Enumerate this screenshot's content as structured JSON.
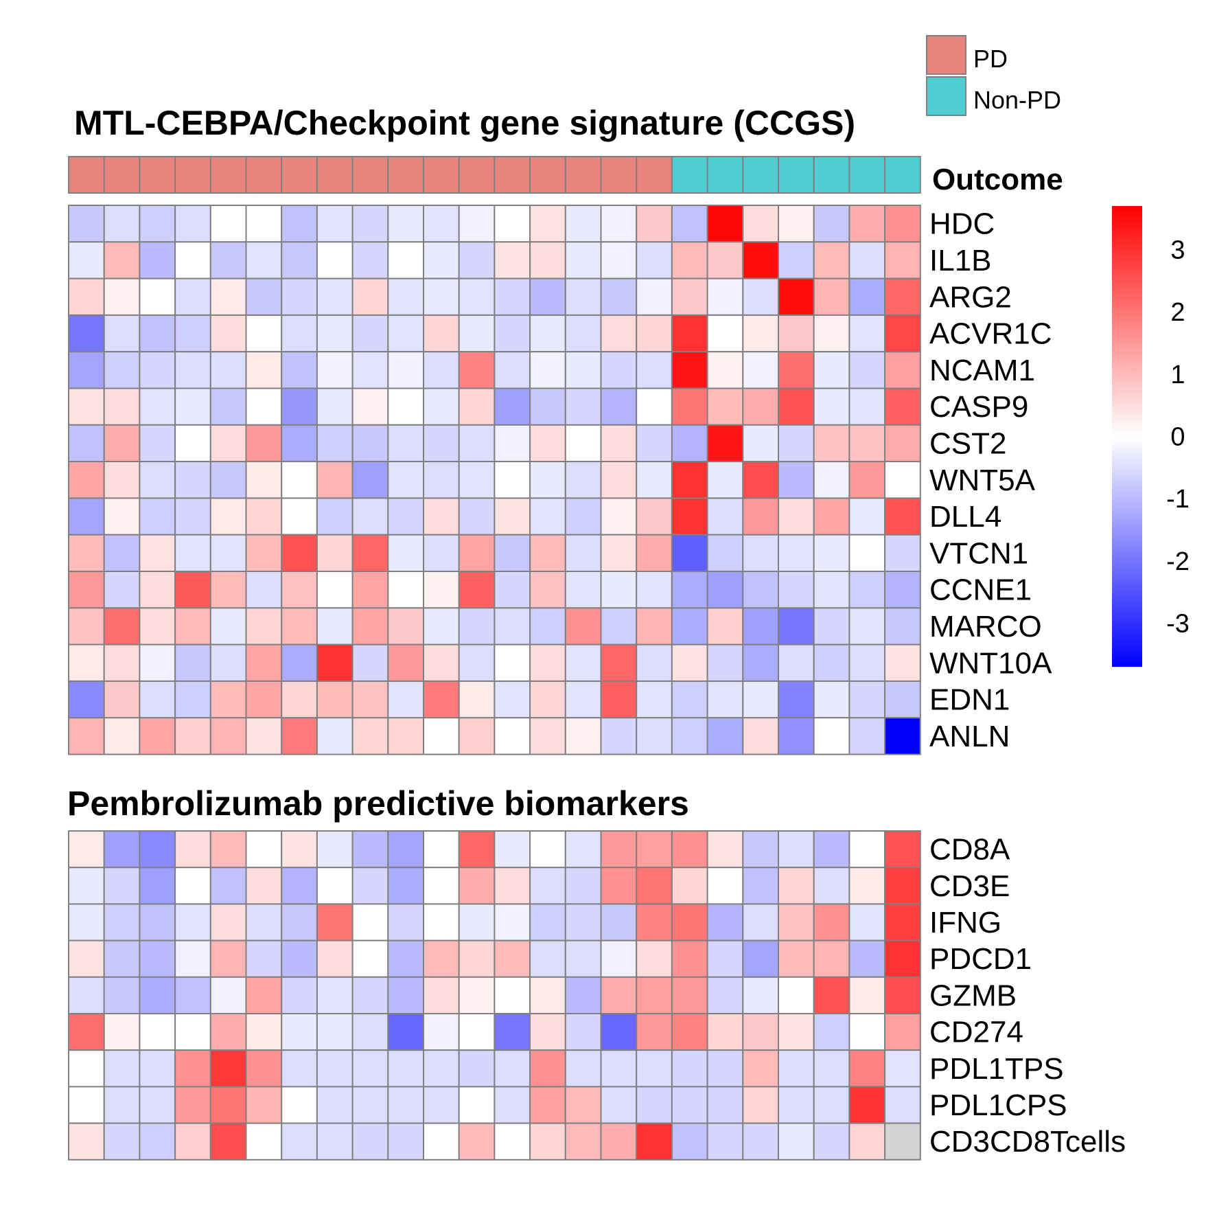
{
  "colors": {
    "pd": "#E8837E",
    "non_pd": "#4ECDD3",
    "high": "#FF0000",
    "mid": "#FFFFFF",
    "low": "#0000FF",
    "na": "#D3D3D3",
    "grid": "#808080"
  },
  "legend": {
    "items": [
      {
        "label": "PD",
        "color": "#E8837E"
      },
      {
        "label": "Non-PD",
        "color": "#4ECDD3"
      }
    ]
  },
  "chart_data": {
    "type": "heatmap",
    "outcome": {
      "label": "Outcome",
      "values": [
        "PD",
        "PD",
        "PD",
        "PD",
        "PD",
        "PD",
        "PD",
        "PD",
        "PD",
        "PD",
        "PD",
        "PD",
        "PD",
        "PD",
        "PD",
        "PD",
        "PD",
        "Non-PD",
        "Non-PD",
        "Non-PD",
        "Non-PD",
        "Non-PD",
        "Non-PD",
        "Non-PD"
      ]
    },
    "colorbar": {
      "range": [
        -3.7,
        3.7
      ],
      "ticks": [
        3,
        2,
        1,
        0,
        -1,
        -2,
        -3
      ]
    },
    "panels": [
      {
        "title": "MTL-CEBPA/Checkpoint gene signature (CCGS)",
        "rows": [
          "HDC",
          "IL1B",
          "ARG2",
          "ACVR1C",
          "NCAM1",
          "CASP9",
          "CST2",
          "WNT5A",
          "DLL4",
          "VTCN1",
          "CCNE1",
          "MARCO",
          "WNT10A",
          "EDN1",
          "ANLN"
        ],
        "values": [
          [
            -0.8,
            -0.5,
            -0.7,
            -0.5,
            0.0,
            0.0,
            -0.9,
            -0.4,
            -0.6,
            -0.3,
            -0.4,
            -0.2,
            0.0,
            0.4,
            -0.3,
            -0.2,
            0.8,
            -0.9,
            3.6,
            0.5,
            0.2,
            -0.8,
            1.2,
            1.6
          ],
          [
            -0.3,
            1.0,
            -1.0,
            0.0,
            -0.8,
            -0.4,
            -0.8,
            0.0,
            -0.6,
            0.0,
            -0.3,
            -0.6,
            0.4,
            0.5,
            -0.3,
            -0.2,
            -0.5,
            1.0,
            0.8,
            3.5,
            -0.7,
            1.0,
            -0.5,
            1.1
          ],
          [
            0.6,
            0.2,
            0.0,
            -0.5,
            0.3,
            -0.8,
            -0.6,
            -0.4,
            0.6,
            -0.4,
            -0.3,
            -0.4,
            -0.6,
            -1.0,
            -0.5,
            -0.8,
            -0.2,
            0.8,
            -0.2,
            -0.5,
            3.5,
            1.1,
            -1.2,
            2.2
          ],
          [
            -2.0,
            -0.5,
            -0.9,
            -0.7,
            0.5,
            0.0,
            -0.5,
            -0.3,
            -0.6,
            -0.4,
            0.6,
            -0.3,
            -0.6,
            -0.3,
            -0.5,
            0.5,
            0.6,
            3.0,
            0.0,
            0.3,
            0.8,
            0.2,
            -0.4,
            2.7
          ],
          [
            -1.3,
            -0.7,
            -0.6,
            -0.5,
            -0.5,
            0.3,
            -0.9,
            -0.2,
            -0.4,
            -0.2,
            -0.5,
            1.8,
            -0.5,
            -0.2,
            -0.3,
            -0.6,
            -0.5,
            3.4,
            0.2,
            -0.2,
            2.1,
            -0.3,
            -0.6,
            1.4
          ],
          [
            0.4,
            0.5,
            -0.4,
            -0.3,
            -0.8,
            0.0,
            -1.5,
            -0.3,
            0.2,
            0.0,
            -0.3,
            0.6,
            -1.4,
            -0.8,
            -0.6,
            -1.1,
            0.0,
            2.0,
            1.0,
            1.2,
            2.5,
            -0.3,
            -0.4,
            2.3
          ],
          [
            -0.9,
            1.2,
            -0.6,
            0.0,
            0.5,
            1.5,
            -1.2,
            -0.7,
            -0.8,
            -0.5,
            -0.6,
            -0.5,
            -0.2,
            0.5,
            0.0,
            0.5,
            -0.6,
            -1.1,
            3.4,
            -0.3,
            -0.6,
            0.9,
            0.9,
            1.2
          ],
          [
            1.3,
            0.5,
            -0.5,
            -0.6,
            -0.8,
            0.3,
            0.0,
            1.1,
            -1.4,
            -0.4,
            -0.5,
            -0.4,
            0.0,
            -0.3,
            -0.5,
            0.5,
            -0.3,
            3.0,
            -0.3,
            2.6,
            -1.0,
            -0.2,
            1.5,
            0.0
          ],
          [
            -1.3,
            0.2,
            -0.7,
            -0.6,
            0.3,
            0.6,
            0.0,
            -0.7,
            -0.5,
            -0.6,
            0.5,
            -0.6,
            0.4,
            -0.4,
            -0.7,
            0.2,
            0.8,
            3.0,
            -0.5,
            1.5,
            0.5,
            1.3,
            -0.3,
            2.5
          ],
          [
            1.0,
            -0.9,
            0.4,
            -0.4,
            -0.4,
            1.0,
            2.5,
            0.6,
            2.2,
            -0.3,
            -0.5,
            1.3,
            -0.8,
            1.0,
            -0.5,
            0.4,
            1.2,
            -2.3,
            -0.7,
            -0.5,
            -0.4,
            -0.3,
            0.0,
            -0.6
          ],
          [
            1.5,
            -0.6,
            0.5,
            2.4,
            1.0,
            -0.5,
            0.9,
            0.0,
            1.3,
            0.0,
            0.2,
            2.3,
            -0.6,
            0.9,
            -0.4,
            -0.3,
            -0.4,
            -1.2,
            -1.4,
            -0.9,
            -0.6,
            -0.4,
            -0.7,
            -1.1
          ],
          [
            0.9,
            2.1,
            0.5,
            1.0,
            -0.3,
            0.6,
            1.0,
            -0.3,
            1.3,
            0.8,
            -0.3,
            -0.6,
            -0.5,
            -0.7,
            1.6,
            -0.7,
            1.1,
            -1.2,
            0.7,
            -1.4,
            -2.0,
            -0.6,
            -0.4,
            -0.8
          ],
          [
            0.3,
            0.5,
            -0.2,
            -0.8,
            -0.5,
            1.3,
            -1.2,
            3.0,
            -0.6,
            1.5,
            0.5,
            -0.5,
            0.0,
            0.5,
            -0.4,
            2.2,
            -0.5,
            0.4,
            -0.6,
            -1.2,
            -0.5,
            -0.7,
            -0.5,
            0.4
          ],
          [
            -1.7,
            0.8,
            -0.5,
            -0.7,
            1.0,
            1.3,
            0.6,
            1.0,
            0.9,
            -0.4,
            1.9,
            0.3,
            -0.4,
            0.6,
            -0.4,
            2.3,
            -0.4,
            -0.7,
            -0.4,
            -0.3,
            -1.8,
            -0.3,
            -0.6,
            -0.8
          ],
          [
            1.1,
            0.3,
            1.3,
            0.7,
            1.1,
            0.4,
            1.9,
            -0.3,
            0.6,
            0.6,
            0.0,
            0.7,
            0.0,
            0.5,
            0.2,
            -0.6,
            -0.5,
            -0.7,
            -1.2,
            0.5,
            -1.6,
            0.0,
            -0.6,
            -3.7
          ]
        ]
      },
      {
        "title": "Pembrolizumab predictive biomarkers",
        "rows": [
          "CD8A",
          "CD3E",
          "IFNG",
          "PDCD1",
          "GZMB",
          "CD274",
          "PDL1TPS",
          "PDL1CPS",
          "CD3CD8Tcells"
        ],
        "values": [
          [
            0.3,
            -1.4,
            -1.7,
            0.5,
            1.0,
            0.0,
            0.4,
            -0.3,
            -1.0,
            -1.3,
            0.0,
            2.2,
            -0.3,
            0.0,
            -0.4,
            1.5,
            1.4,
            1.6,
            0.4,
            -0.8,
            -0.5,
            -1.0,
            0.0,
            2.5
          ],
          [
            -0.3,
            -0.6,
            -1.4,
            0.0,
            -0.9,
            0.5,
            -1.1,
            0.0,
            -0.6,
            -1.2,
            0.0,
            1.2,
            0.5,
            -0.5,
            -0.6,
            1.6,
            2.0,
            0.6,
            0.0,
            -0.9,
            0.6,
            -0.5,
            0.3,
            2.8
          ],
          [
            -0.3,
            -0.7,
            -0.9,
            -0.4,
            0.5,
            -0.5,
            -0.8,
            2.0,
            0.0,
            -0.6,
            0.0,
            -0.3,
            -0.2,
            -0.7,
            -0.6,
            -0.8,
            1.8,
            2.0,
            -1.1,
            -0.5,
            0.9,
            1.6,
            -0.4,
            2.8
          ],
          [
            0.4,
            -0.8,
            -1.0,
            -0.2,
            1.1,
            -0.6,
            -1.0,
            0.5,
            0.0,
            -1.0,
            1.0,
            0.6,
            1.0,
            -0.5,
            -0.5,
            -0.2,
            0.5,
            1.6,
            -0.6,
            -1.3,
            1.0,
            1.1,
            -1.0,
            3.0
          ],
          [
            -0.5,
            -0.8,
            -1.2,
            -0.9,
            -0.2,
            1.3,
            -0.6,
            -0.4,
            -0.6,
            -1.0,
            0.5,
            0.2,
            0.0,
            0.3,
            -1.0,
            1.2,
            1.4,
            1.5,
            -0.6,
            -0.3,
            0.0,
            2.5,
            0.3,
            2.6
          ],
          [
            2.1,
            0.2,
            0.0,
            0.0,
            1.2,
            0.3,
            -0.3,
            -0.3,
            -0.5,
            -2.2,
            -0.2,
            0.0,
            -2.0,
            0.5,
            -0.6,
            -2.2,
            1.5,
            1.8,
            0.6,
            0.8,
            0.4,
            -0.7,
            0.0,
            1.4
          ],
          [
            0.0,
            -0.5,
            -0.5,
            1.6,
            2.9,
            1.6,
            -0.5,
            -0.5,
            -0.5,
            -0.5,
            -0.5,
            -0.6,
            -0.5,
            1.6,
            -0.5,
            -0.5,
            -0.5,
            -0.6,
            -0.6,
            1.0,
            -0.5,
            -0.5,
            1.8,
            -0.4
          ],
          [
            0.0,
            -0.5,
            -0.5,
            1.5,
            2.0,
            1.1,
            0.0,
            -0.5,
            -0.5,
            -0.5,
            -0.5,
            0.0,
            -0.5,
            1.4,
            1.0,
            -0.5,
            -0.6,
            -0.6,
            -0.6,
            0.6,
            -0.5,
            -0.5,
            3.0,
            -0.5
          ],
          [
            0.4,
            -0.6,
            -0.7,
            0.7,
            2.6,
            0.0,
            -0.5,
            -0.5,
            -0.6,
            -0.6,
            0.0,
            1.0,
            0.0,
            0.6,
            1.0,
            1.2,
            3.0,
            -0.9,
            -0.6,
            -0.6,
            -0.3,
            -0.6,
            0.6,
            null
          ]
        ]
      }
    ]
  }
}
